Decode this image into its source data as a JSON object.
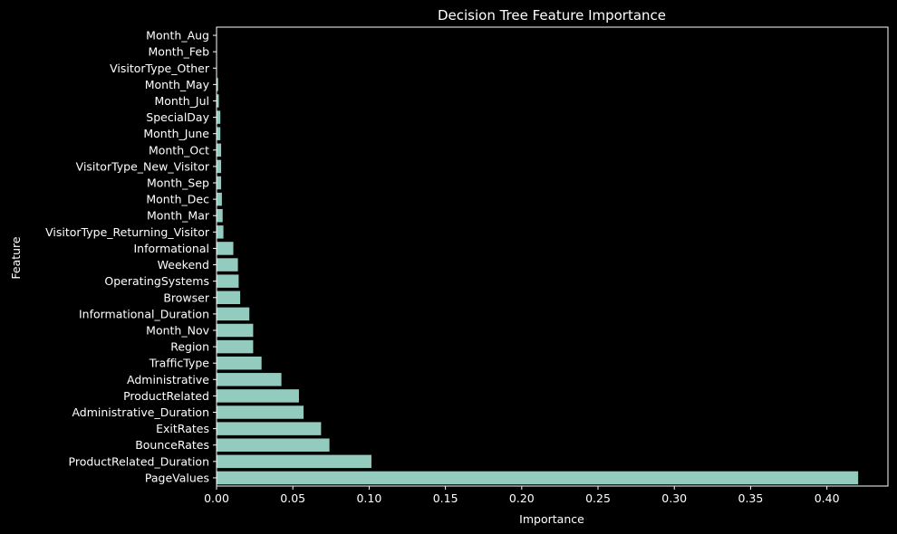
{
  "chart_data": {
    "type": "bar",
    "orientation": "horizontal",
    "title": "Decision Tree Feature Importance",
    "xlabel": "Importance",
    "ylabel": "Feature",
    "xlim": [
      0,
      0.44
    ],
    "xticks": [
      0.0,
      0.05,
      0.1,
      0.15,
      0.2,
      0.25,
      0.3,
      0.35,
      0.4
    ],
    "xtick_labels": [
      "0.00",
      "0.05",
      "0.10",
      "0.15",
      "0.20",
      "0.25",
      "0.30",
      "0.35",
      "0.40"
    ],
    "grid": false,
    "bar_color": "#94cbbf",
    "background": "#000000",
    "categories": [
      "Month_Aug",
      "Month_Feb",
      "VisitorType_Other",
      "Month_May",
      "Month_Jul",
      "SpecialDay",
      "Month_June",
      "Month_Oct",
      "VisitorType_New_Visitor",
      "Month_Sep",
      "Month_Dec",
      "Month_Mar",
      "VisitorType_Returning_Visitor",
      "Informational",
      "Weekend",
      "OperatingSystems",
      "Browser",
      "Informational_Duration",
      "Month_Nov",
      "Region",
      "TrafficType",
      "Administrative",
      "ProductRelated",
      "Administrative_Duration",
      "ExitRates",
      "BounceRates",
      "ProductRelated_Duration",
      "PageValues"
    ],
    "values": [
      0.0,
      0.0,
      0.0003,
      0.001,
      0.0015,
      0.0025,
      0.0025,
      0.003,
      0.003,
      0.003,
      0.0035,
      0.004,
      0.0045,
      0.011,
      0.014,
      0.0145,
      0.0155,
      0.0215,
      0.024,
      0.024,
      0.0295,
      0.0425,
      0.054,
      0.057,
      0.0685,
      0.074,
      0.1015,
      0.4205
    ]
  }
}
